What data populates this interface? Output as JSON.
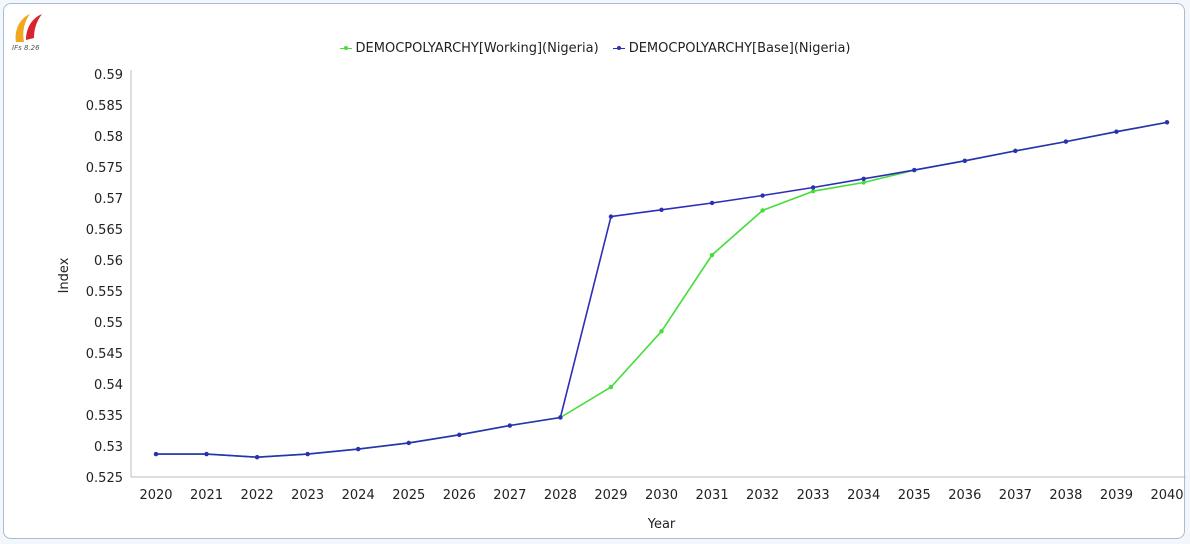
{
  "logo": {
    "caption": "IFs 8.26",
    "colors": [
      "#f2a81d",
      "#d8252d"
    ]
  },
  "chart_data": {
    "type": "line",
    "title": "",
    "xlabel": "Year",
    "ylabel": "Index",
    "x": [
      2020,
      2021,
      2022,
      2023,
      2024,
      2025,
      2026,
      2027,
      2028,
      2029,
      2030,
      2031,
      2032,
      2033,
      2034,
      2035,
      2036,
      2037,
      2038,
      2039,
      2040
    ],
    "ylim": [
      0.525,
      0.59
    ],
    "yticks": [
      "0.525",
      "0.53",
      "0.535",
      "0.54",
      "0.545",
      "0.55",
      "0.555",
      "0.56",
      "0.565",
      "0.57",
      "0.575",
      "0.58",
      "0.585",
      "0.59"
    ],
    "grid": false,
    "legend_position": "top-center",
    "series": [
      {
        "name": "DEMOCPOLYARCHY[Working](Nigeria)",
        "color": "#44dd3a",
        "values": [
          0.5287,
          0.5287,
          0.5282,
          0.5287,
          0.5295,
          0.5305,
          0.5318,
          0.5333,
          0.5346,
          0.5395,
          0.5485,
          0.5608,
          0.568,
          0.5711,
          0.5725,
          0.5745,
          0.576,
          0.5776,
          0.5791,
          0.5807,
          0.5822
        ]
      },
      {
        "name": "DEMOCPOLYARCHY[Base](Nigeria)",
        "color": "#2b2fb6",
        "values": [
          0.5287,
          0.5287,
          0.5282,
          0.5287,
          0.5295,
          0.5305,
          0.5318,
          0.5333,
          0.5346,
          0.567,
          0.5681,
          0.5692,
          0.5704,
          0.5717,
          0.5731,
          0.5745,
          0.576,
          0.5776,
          0.5791,
          0.5807,
          0.5822
        ]
      }
    ]
  }
}
